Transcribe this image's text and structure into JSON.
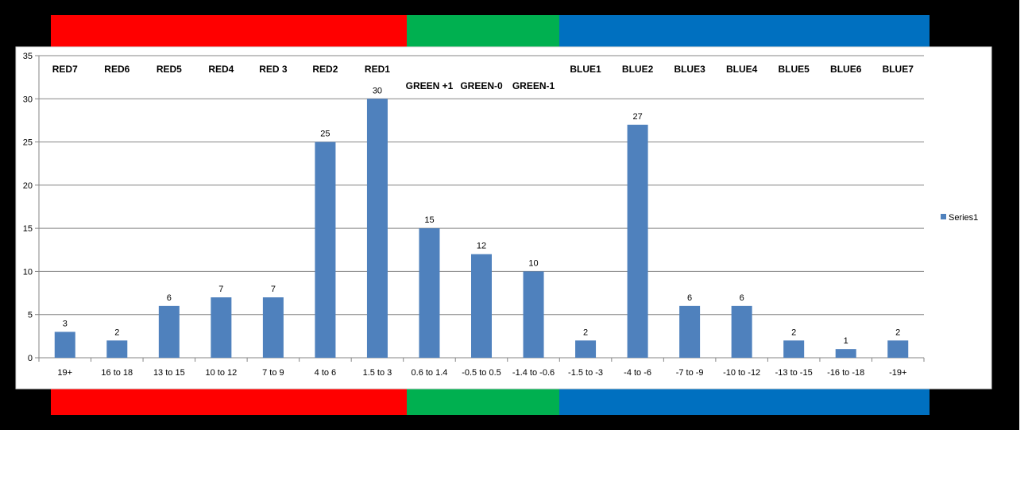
{
  "colors": {
    "red": "#ff0000",
    "green": "#00b050",
    "blue": "#0070c0",
    "bar": "#4f81bd",
    "frame": "#000000",
    "plot_background": "#ffffff",
    "gridline": "#868686"
  },
  "chart_data": {
    "type": "bar",
    "title": "",
    "xlabel": "",
    "ylabel": "",
    "ylim": [
      0,
      35
    ],
    "yticks": [
      0,
      5,
      10,
      15,
      20,
      25,
      30,
      35
    ],
    "grid": true,
    "legend_position": "right",
    "categories": [
      "19+",
      "16 to 18",
      "13 to 15",
      "10 to 12",
      "7 to 9",
      "4 to 6",
      "1.5 to 3",
      "0.6 to 1.4",
      "-0.5 to 0.5",
      "-1.4 to -0.6",
      "-1.5 to -3",
      "-4 to -6",
      "-7 to -9",
      "-10 to -12",
      "-13 to -15",
      "-16 to -18",
      "-19+"
    ],
    "series": [
      {
        "name": "Series1",
        "values": [
          3,
          2,
          6,
          7,
          7,
          25,
          30,
          15,
          12,
          10,
          2,
          27,
          6,
          6,
          2,
          1,
          2
        ]
      }
    ],
    "data_labels": true,
    "group_labels": [
      "RED7",
      "RED6",
      "RED5",
      "RED4",
      "RED 3",
      "RED2",
      "RED1",
      "GREEN +1",
      "GREEN-0",
      "GREEN-1",
      "BLUE1",
      "BLUE2",
      "BLUE3",
      "BLUE4",
      "BLUE5",
      "BLUE6",
      "BLUE7"
    ]
  }
}
